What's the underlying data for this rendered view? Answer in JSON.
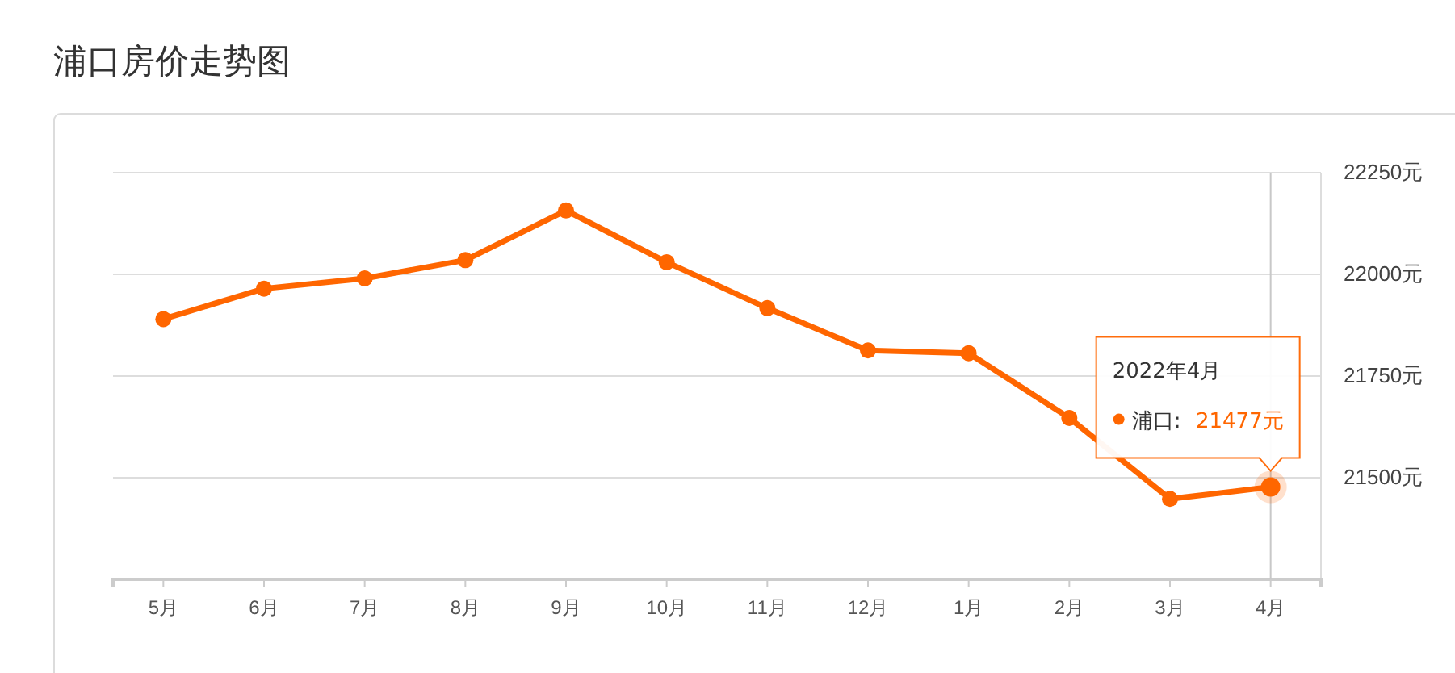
{
  "chart_data": {
    "type": "line",
    "title": "浦口房价走势图",
    "categories": [
      "5月",
      "6月",
      "7月",
      "8月",
      "9月",
      "10月",
      "11月",
      "12月",
      "1月",
      "2月",
      "3月",
      "4月"
    ],
    "series": [
      {
        "name": "浦口:",
        "color": "#ff6600",
        "values": [
          21890,
          21965,
          21990,
          22035,
          22157,
          22030,
          21917,
          21813,
          21806,
          21647,
          21448,
          21477
        ],
        "value_labels": [
          null,
          null,
          null,
          null,
          null,
          null,
          null,
          null,
          null,
          null,
          null,
          "21477元"
        ]
      }
    ],
    "ylim": [
      21250,
      22250
    ],
    "yticks": [
      {
        "value": 21500,
        "label": "21500元"
      },
      {
        "value": 21750,
        "label": "21750元"
      },
      {
        "value": 22000,
        "label": "22000元"
      },
      {
        "value": 22250,
        "label": "22250元"
      }
    ],
    "grid": "y",
    "marker": "circle",
    "line_style": "solid",
    "ref_lines": [
      {
        "axis": "x",
        "value": "4月",
        "color": "#c8c8c8"
      }
    ],
    "annotations": [
      "2022年4月"
    ]
  }
}
